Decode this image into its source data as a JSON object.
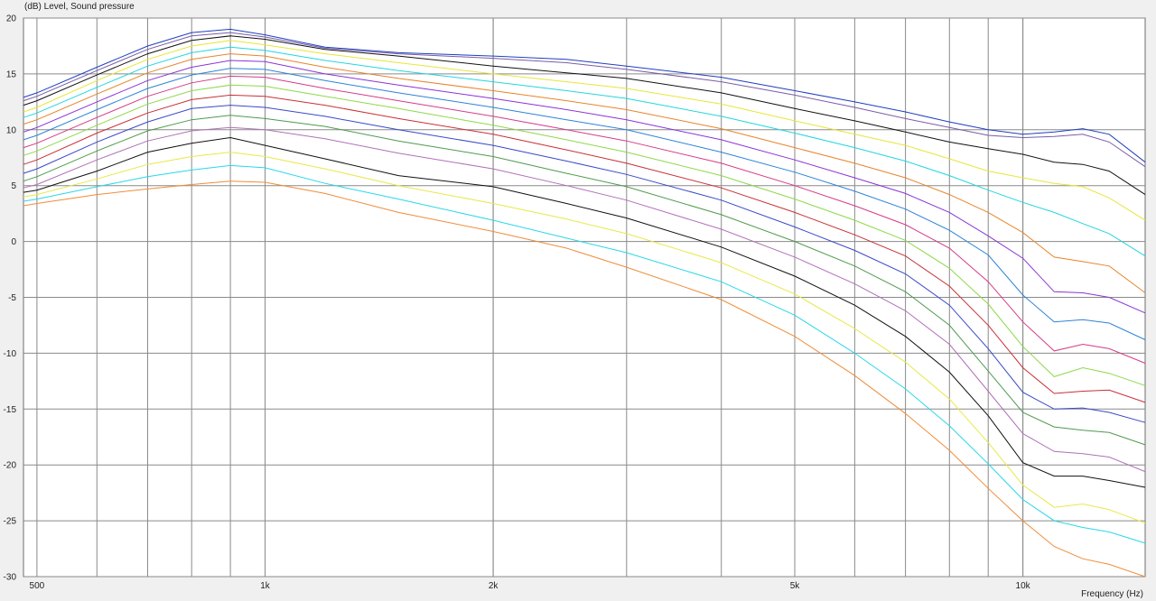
{
  "chart_data": {
    "type": "line",
    "ylabel": "(dB)  Level, Sound pressure",
    "xlabel": "Frequency  (Hz)",
    "x_scale": "log",
    "xlim": [
      480,
      14500
    ],
    "ylim": [
      -30,
      20
    ],
    "x_gridlines": [
      600,
      700,
      800,
      900,
      1000,
      2000,
      3000,
      4000,
      5000,
      6000,
      7000,
      8000,
      9000,
      10000
    ],
    "x_ticks": [
      {
        "value": 500,
        "label": "500"
      },
      {
        "value": 1000,
        "label": "1k"
      },
      {
        "value": 2000,
        "label": "2k"
      },
      {
        "value": 5000,
        "label": "5k"
      },
      {
        "value": 10000,
        "label": "10k"
      }
    ],
    "y_ticks": [
      20,
      15,
      10,
      5,
      0,
      -5,
      -10,
      -15,
      -20,
      -25,
      -30
    ],
    "x": [
      480,
      500,
      600,
      700,
      800,
      900,
      1000,
      1200,
      1500,
      2000,
      2500,
      3000,
      4000,
      5000,
      6000,
      7000,
      8000,
      9000,
      10000,
      11000,
      12000,
      13000,
      14500
    ],
    "series": [
      {
        "color": "#1f3fbf",
        "values": [
          12.9,
          13.3,
          15.6,
          17.5,
          18.7,
          19.0,
          18.5,
          17.4,
          16.9,
          16.6,
          16.3,
          15.7,
          14.7,
          13.5,
          12.5,
          11.6,
          10.7,
          10.0,
          9.6,
          9.8,
          10.1,
          9.6,
          7.1
        ]
      },
      {
        "color": "#7a5ca8",
        "values": [
          12.6,
          13.0,
          15.3,
          17.2,
          18.4,
          18.7,
          18.3,
          17.3,
          16.8,
          16.4,
          16.0,
          15.4,
          14.3,
          13.1,
          12.0,
          11.0,
          10.2,
          9.5,
          9.3,
          9.4,
          9.6,
          8.9,
          6.7
        ]
      },
      {
        "color": "#111111",
        "values": [
          12.2,
          12.6,
          14.9,
          16.8,
          18.0,
          18.4,
          18.1,
          17.2,
          16.6,
          15.7,
          15.1,
          14.6,
          13.3,
          11.9,
          10.8,
          9.8,
          8.9,
          8.3,
          7.8,
          7.1,
          6.9,
          6.3,
          4.2
        ]
      },
      {
        "color": "#e6e63a",
        "values": [
          11.6,
          12.0,
          14.4,
          16.3,
          17.5,
          18.0,
          17.6,
          16.8,
          16.0,
          15.0,
          14.3,
          13.7,
          12.3,
          10.8,
          9.6,
          8.6,
          7.4,
          6.3,
          5.7,
          5.2,
          4.9,
          3.9,
          1.9
        ]
      },
      {
        "color": "#22d6e0",
        "values": [
          11.1,
          11.5,
          13.8,
          15.7,
          16.9,
          17.4,
          17.1,
          16.2,
          15.3,
          14.3,
          13.5,
          12.8,
          11.2,
          9.7,
          8.4,
          7.2,
          5.9,
          4.6,
          3.5,
          2.6,
          1.6,
          0.7,
          -1.3
        ]
      },
      {
        "color": "#e8842a",
        "values": [
          10.5,
          10.9,
          13.2,
          15.1,
          16.3,
          16.8,
          16.6,
          15.6,
          14.6,
          13.5,
          12.6,
          11.8,
          10.1,
          8.4,
          7.0,
          5.7,
          4.2,
          2.6,
          0.8,
          -1.4,
          -1.8,
          -2.2,
          -4.6
        ]
      },
      {
        "color": "#8a34d6",
        "values": [
          9.8,
          10.2,
          12.5,
          14.4,
          15.6,
          16.2,
          16.1,
          15.0,
          14.0,
          12.8,
          11.8,
          10.9,
          9.1,
          7.3,
          5.7,
          4.3,
          2.6,
          0.5,
          -1.5,
          -4.5,
          -4.6,
          -5.0,
          -6.4
        ]
      },
      {
        "color": "#2c83d8",
        "values": [
          9.1,
          9.5,
          11.8,
          13.7,
          14.9,
          15.5,
          15.4,
          14.4,
          13.3,
          12.0,
          10.9,
          10.0,
          8.0,
          6.2,
          4.5,
          2.9,
          1.0,
          -1.2,
          -4.8,
          -7.2,
          -7.0,
          -7.3,
          -8.8
        ]
      },
      {
        "color": "#d63a88",
        "values": [
          8.4,
          8.8,
          11.1,
          13.0,
          14.2,
          14.8,
          14.7,
          13.7,
          12.6,
          11.2,
          10.0,
          9.0,
          7.0,
          5.0,
          3.2,
          1.5,
          -0.6,
          -3.6,
          -7.2,
          -9.8,
          -9.2,
          -9.6,
          -10.9
        ]
      },
      {
        "color": "#8ed84a",
        "values": [
          7.7,
          8.1,
          10.4,
          12.3,
          13.5,
          14.0,
          13.9,
          13.0,
          11.9,
          10.4,
          9.1,
          8.0,
          5.9,
          3.8,
          1.9,
          0.1,
          -2.4,
          -5.6,
          -9.4,
          -12.1,
          -11.3,
          -11.8,
          -12.9
        ]
      },
      {
        "color": "#c83038",
        "values": [
          6.9,
          7.3,
          9.7,
          11.5,
          12.7,
          13.1,
          13.0,
          12.2,
          11.0,
          9.6,
          8.2,
          7.0,
          4.8,
          2.6,
          0.6,
          -1.3,
          -4.0,
          -7.5,
          -11.3,
          -13.6,
          -13.4,
          -13.3,
          -14.4
        ]
      },
      {
        "color": "#3a48c8",
        "values": [
          6.1,
          6.5,
          8.9,
          10.7,
          11.9,
          12.2,
          12.0,
          11.2,
          10.0,
          8.6,
          7.2,
          6.0,
          3.7,
          1.3,
          -0.8,
          -2.9,
          -5.7,
          -9.6,
          -13.5,
          -15.0,
          -14.9,
          -15.3,
          -16.2
        ]
      },
      {
        "color": "#4f9a4f",
        "values": [
          5.4,
          5.8,
          8.1,
          9.9,
          10.9,
          11.3,
          11.0,
          10.3,
          9.0,
          7.6,
          6.1,
          4.9,
          2.4,
          0.0,
          -2.2,
          -4.5,
          -7.5,
          -11.6,
          -15.3,
          -16.6,
          -16.9,
          -17.1,
          -18.2
        ]
      },
      {
        "color": "#b070b8",
        "values": [
          4.8,
          5.1,
          7.3,
          9.0,
          9.9,
          10.2,
          10.0,
          9.2,
          7.9,
          6.5,
          5.0,
          3.7,
          1.1,
          -1.4,
          -3.8,
          -6.2,
          -9.2,
          -13.4,
          -17.2,
          -18.8,
          -19.0,
          -19.3,
          -20.6
        ]
      },
      {
        "color": "#111111",
        "values": [
          4.4,
          4.6,
          6.3,
          8.0,
          8.8,
          9.3,
          8.6,
          7.4,
          5.9,
          4.9,
          3.4,
          2.1,
          -0.5,
          -3.1,
          -5.7,
          -8.5,
          -11.7,
          -15.6,
          -19.8,
          -21.0,
          -21.0,
          -21.4,
          -22.0
        ]
      },
      {
        "color": "#e8e84a",
        "values": [
          4.0,
          4.2,
          5.6,
          6.9,
          7.6,
          8.0,
          7.6,
          6.5,
          5.0,
          3.4,
          2.0,
          0.7,
          -1.9,
          -4.7,
          -7.8,
          -10.8,
          -14.1,
          -18.0,
          -21.8,
          -23.8,
          -23.5,
          -24.0,
          -25.2
        ]
      },
      {
        "color": "#28d8e8",
        "values": [
          3.6,
          3.8,
          4.9,
          5.8,
          6.4,
          6.8,
          6.6,
          5.2,
          3.8,
          1.9,
          0.3,
          -1.0,
          -3.6,
          -6.6,
          -10.0,
          -13.2,
          -16.5,
          -19.9,
          -23.1,
          -25.0,
          -25.6,
          -26.0,
          -27.0
        ]
      },
      {
        "color": "#f08c38",
        "values": [
          3.2,
          3.4,
          4.2,
          4.7,
          5.1,
          5.4,
          5.3,
          4.3,
          2.6,
          0.9,
          -0.6,
          -2.3,
          -5.2,
          -8.5,
          -12.0,
          -15.4,
          -18.7,
          -22.1,
          -25.0,
          -27.3,
          -28.4,
          -28.9,
          -30.0
        ]
      }
    ]
  }
}
